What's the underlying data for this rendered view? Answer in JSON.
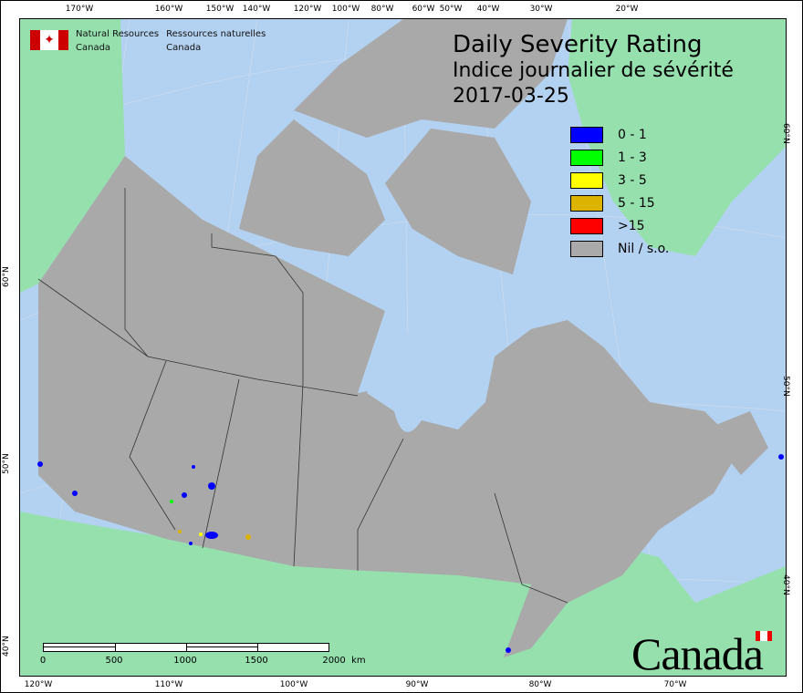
{
  "agency": {
    "en_line1": "Natural Resources",
    "en_line2": "Canada",
    "fr_line1": "Ressources naturelles",
    "fr_line2": "Canada",
    "logo": "canada-flag-logo"
  },
  "title": {
    "en": "Daily Severity Rating",
    "fr": "Indice journalier de sévérité",
    "date": "2017-03-25"
  },
  "legend": [
    {
      "label": "0 - 1",
      "color": "#0000ff"
    },
    {
      "label": "1 - 3",
      "color": "#00ff00"
    },
    {
      "label": "3 - 5",
      "color": "#ffff00"
    },
    {
      "label": "5 - 15",
      "color": "#dcb400"
    },
    {
      "label": ">15",
      "color": "#ff0000"
    },
    {
      "label": "Nil / s.o.",
      "color": "#aaaaaa"
    }
  ],
  "colors": {
    "water": "#b3d1f0",
    "foreign_land": "#96e0ae",
    "canada_land": "#a9a9a9"
  },
  "axes": {
    "top": [
      "170°W",
      "160°W",
      "150°W",
      "140°W",
      "120°W",
      "100°W",
      "80°W",
      "60°W",
      "50°W",
      "40°W",
      "30°W",
      "20°W"
    ],
    "bottom": [
      "120°W",
      "110°W",
      "100°W",
      "90°W",
      "80°W",
      "70°W"
    ],
    "left": [
      "60°N",
      "50°N",
      "40°N"
    ],
    "right": [
      "60°N",
      "50°N",
      "40°N"
    ]
  },
  "scale_bar": {
    "labels": [
      "0",
      "500",
      "1000",
      "1500",
      "2000  km"
    ]
  },
  "wordmark": "Canada"
}
